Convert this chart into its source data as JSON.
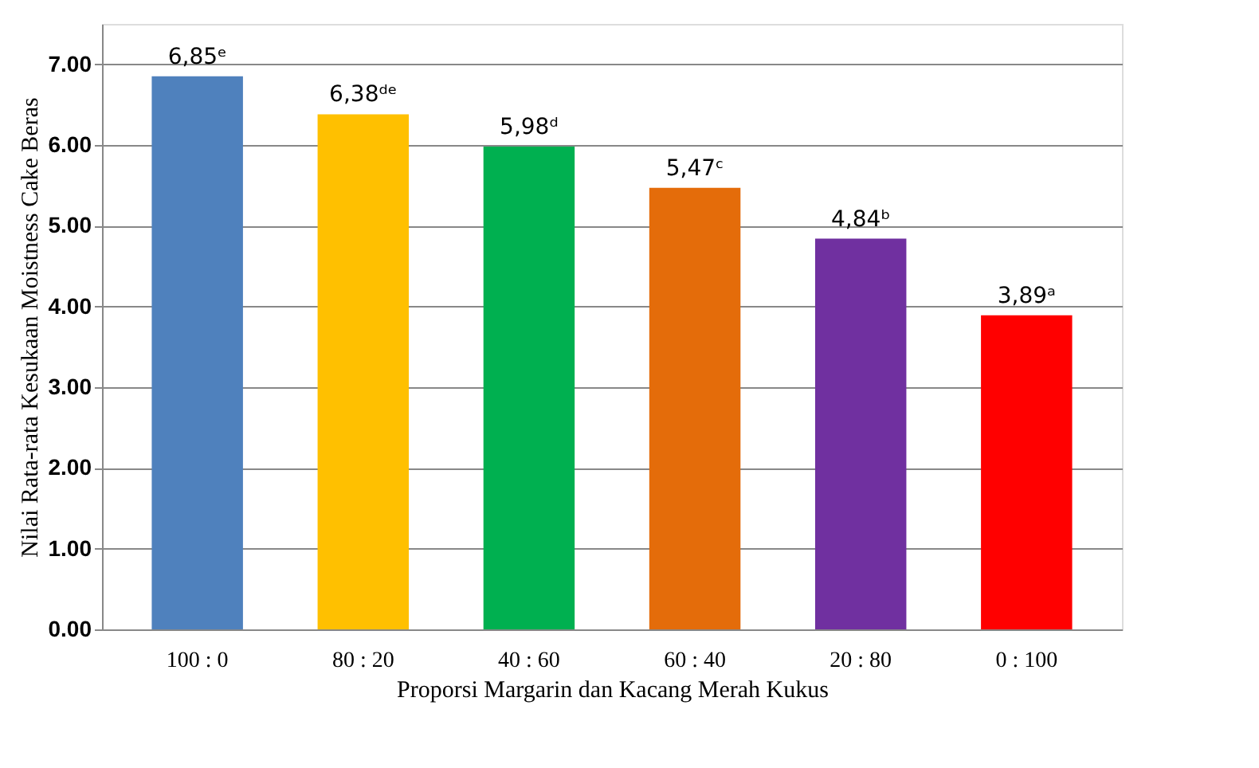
{
  "chart_data": {
    "type": "bar",
    "xlabel": "Proporsi Margarin dan Kacang Merah Kukus",
    "ylabel": "Nilai Rata-rata Kesukaan Moistness Cake Beras",
    "categories": [
      "100 : 0",
      "80 : 20",
      "40 : 60",
      "60 : 40",
      "20 : 80",
      "0 : 100"
    ],
    "values": [
      6.85,
      6.38,
      5.98,
      5.47,
      4.84,
      3.89
    ],
    "colors": [
      "#4f81bd",
      "#ffc000",
      "#00b050",
      "#e46c0a",
      "#7030a0",
      "#ff0000"
    ],
    "value_labels": [
      "6,85ᵉ",
      "6,38ᵈᵉ",
      "5,98ᵈ",
      "5,47ᶜ",
      "4,84ᵇ",
      "3,89ᵃ"
    ],
    "ylim": [
      0,
      7.5
    ],
    "yticks": [
      {
        "value": 0,
        "label": "0.00"
      },
      {
        "value": 1,
        "label": "1.00"
      },
      {
        "value": 2,
        "label": "2.00"
      },
      {
        "value": 3,
        "label": "3.00"
      },
      {
        "value": 4,
        "label": "4.00"
      },
      {
        "value": 5,
        "label": "5.00"
      },
      {
        "value": 6,
        "label": "6.00"
      },
      {
        "value": 7,
        "label": "7.00"
      }
    ],
    "grid": "y"
  }
}
